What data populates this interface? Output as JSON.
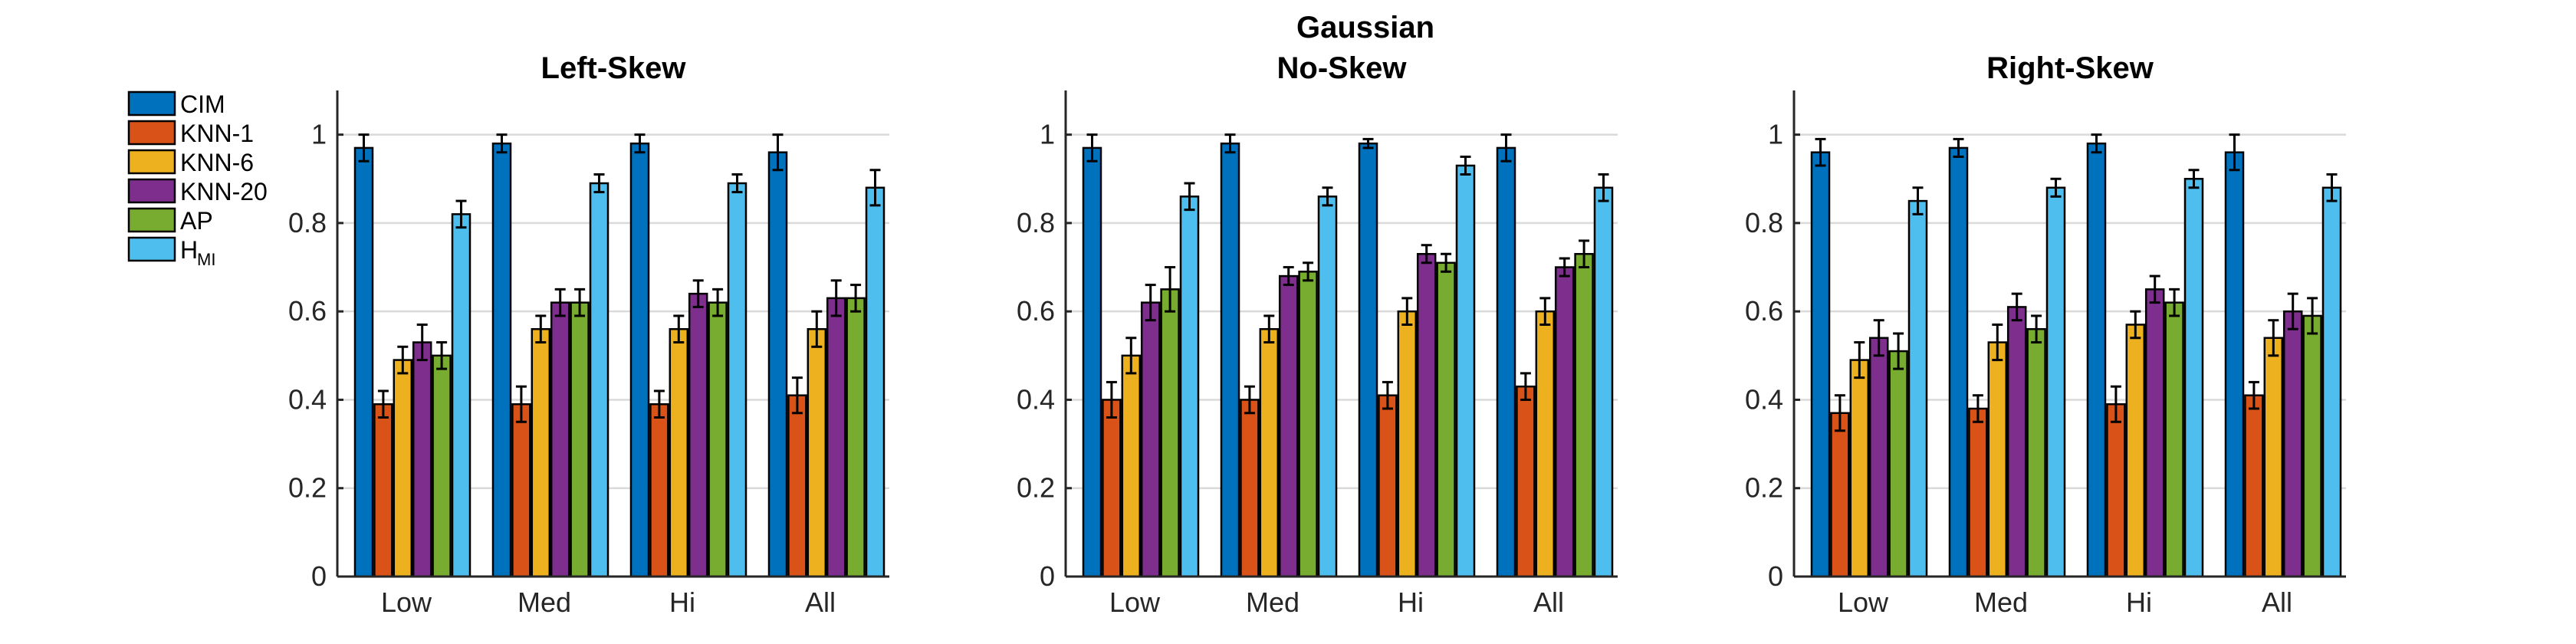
{
  "figure_title": "Gaussian",
  "legend": [
    {
      "label": "CIM",
      "color": "#0072BD"
    },
    {
      "label": "KNN-1",
      "color": "#D95319"
    },
    {
      "label": "KNN-6",
      "color": "#EDB120"
    },
    {
      "label": "KNN-20",
      "color": "#7E2F8E"
    },
    {
      "label": "AP",
      "color": "#77AC30"
    },
    {
      "label": "H",
      "sub": "MI",
      "color": "#4DBEEE"
    }
  ],
  "chart_data": [
    {
      "type": "bar",
      "title": "Left-Skew",
      "categories": [
        "Low",
        "Med",
        "Hi",
        "All"
      ],
      "ylim": [
        0,
        1.1
      ],
      "yticks": [
        0,
        0.2,
        0.4,
        0.6,
        0.8,
        1
      ],
      "ytick_labels": [
        "0",
        "0.2",
        "0.4",
        "0.6",
        "0.8",
        "1"
      ],
      "grid": "horizontal",
      "series": [
        {
          "name": "CIM",
          "values": [
            0.97,
            0.98,
            0.98,
            0.96
          ],
          "errors": [
            0.03,
            0.02,
            0.02,
            0.04
          ]
        },
        {
          "name": "KNN-1",
          "values": [
            0.39,
            0.39,
            0.39,
            0.41
          ],
          "errors": [
            0.03,
            0.04,
            0.03,
            0.04
          ]
        },
        {
          "name": "KNN-6",
          "values": [
            0.49,
            0.56,
            0.56,
            0.56
          ],
          "errors": [
            0.03,
            0.03,
            0.03,
            0.04
          ]
        },
        {
          "name": "KNN-20",
          "values": [
            0.53,
            0.62,
            0.64,
            0.63
          ],
          "errors": [
            0.04,
            0.03,
            0.03,
            0.04
          ]
        },
        {
          "name": "AP",
          "values": [
            0.5,
            0.62,
            0.62,
            0.63
          ],
          "errors": [
            0.03,
            0.03,
            0.03,
            0.03
          ]
        },
        {
          "name": "H_MI",
          "values": [
            0.82,
            0.89,
            0.89,
            0.88
          ],
          "errors": [
            0.03,
            0.02,
            0.02,
            0.04
          ]
        }
      ]
    },
    {
      "type": "bar",
      "title": "No-Skew",
      "categories": [
        "Low",
        "Med",
        "Hi",
        "All"
      ],
      "ylim": [
        0,
        1.1
      ],
      "yticks": [
        0,
        0.2,
        0.4,
        0.6,
        0.8,
        1
      ],
      "ytick_labels": [
        "0",
        "0.2",
        "0.4",
        "0.6",
        "0.8",
        "1"
      ],
      "grid": "horizontal",
      "series": [
        {
          "name": "CIM",
          "values": [
            0.97,
            0.98,
            0.98,
            0.97
          ],
          "errors": [
            0.03,
            0.02,
            0.01,
            0.03
          ]
        },
        {
          "name": "KNN-1",
          "values": [
            0.4,
            0.4,
            0.41,
            0.43
          ],
          "errors": [
            0.04,
            0.03,
            0.03,
            0.03
          ]
        },
        {
          "name": "KNN-6",
          "values": [
            0.5,
            0.56,
            0.6,
            0.6
          ],
          "errors": [
            0.04,
            0.03,
            0.03,
            0.03
          ]
        },
        {
          "name": "KNN-20",
          "values": [
            0.62,
            0.68,
            0.73,
            0.7
          ],
          "errors": [
            0.04,
            0.02,
            0.02,
            0.02
          ]
        },
        {
          "name": "AP",
          "values": [
            0.65,
            0.69,
            0.71,
            0.73
          ],
          "errors": [
            0.05,
            0.02,
            0.02,
            0.03
          ]
        },
        {
          "name": "H_MI",
          "values": [
            0.86,
            0.86,
            0.93,
            0.88
          ],
          "errors": [
            0.03,
            0.02,
            0.02,
            0.03
          ]
        }
      ]
    },
    {
      "type": "bar",
      "title": "Right-Skew",
      "categories": [
        "Low",
        "Med",
        "Hi",
        "All"
      ],
      "ylim": [
        0,
        1.1
      ],
      "yticks": [
        0,
        0.2,
        0.4,
        0.6,
        0.8,
        1
      ],
      "ytick_labels": [
        "0",
        "0.2",
        "0.4",
        "0.6",
        "0.8",
        "1"
      ],
      "grid": "horizontal",
      "series": [
        {
          "name": "CIM",
          "values": [
            0.96,
            0.97,
            0.98,
            0.96
          ],
          "errors": [
            0.03,
            0.02,
            0.02,
            0.04
          ]
        },
        {
          "name": "KNN-1",
          "values": [
            0.37,
            0.38,
            0.39,
            0.41
          ],
          "errors": [
            0.04,
            0.03,
            0.04,
            0.03
          ]
        },
        {
          "name": "KNN-6",
          "values": [
            0.49,
            0.53,
            0.57,
            0.54
          ],
          "errors": [
            0.04,
            0.04,
            0.03,
            0.04
          ]
        },
        {
          "name": "KNN-20",
          "values": [
            0.54,
            0.61,
            0.65,
            0.6
          ],
          "errors": [
            0.04,
            0.03,
            0.03,
            0.04
          ]
        },
        {
          "name": "AP",
          "values": [
            0.51,
            0.56,
            0.62,
            0.59
          ],
          "errors": [
            0.04,
            0.03,
            0.03,
            0.04
          ]
        },
        {
          "name": "H_MI",
          "values": [
            0.85,
            0.88,
            0.9,
            0.88
          ],
          "errors": [
            0.03,
            0.02,
            0.02,
            0.03
          ]
        }
      ]
    }
  ]
}
